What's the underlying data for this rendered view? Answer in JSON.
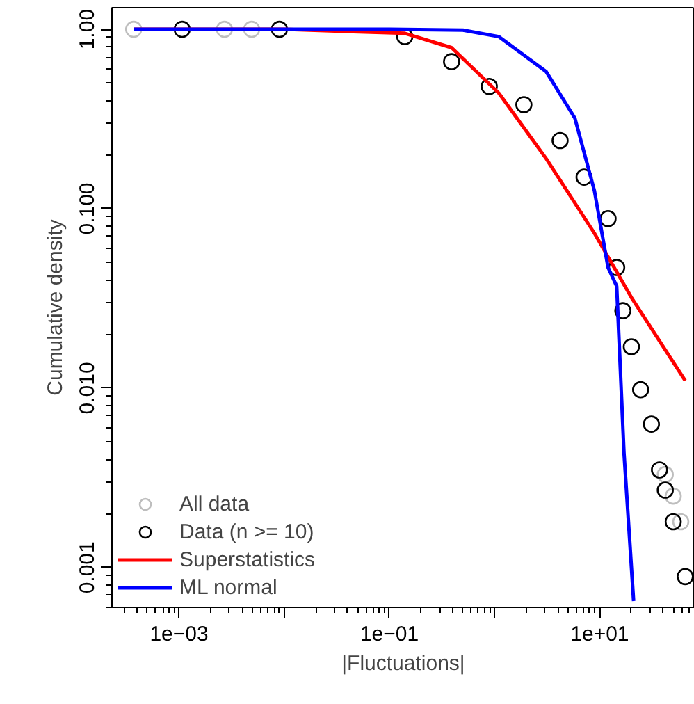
{
  "chart_data": {
    "type": "scatter",
    "xlabel": "|Fluctuations|",
    "ylabel": "Cumulative density",
    "log": "xy",
    "grid": false,
    "legend": "bottom left",
    "marker": "circle",
    "xlim": [
      0.00023,
      80
    ],
    "ylim": [
      0.0006,
      1.32
    ],
    "xticks": [
      {
        "value": 0.001,
        "label": "1e−03"
      },
      {
        "value": 0.01,
        "label": null
      },
      {
        "value": 0.1,
        "label": "1e−01"
      },
      {
        "value": 1,
        "label": null
      },
      {
        "value": 10,
        "label": "1e+01"
      }
    ],
    "yticks": [
      {
        "value": 0.001,
        "label": "0.001"
      },
      {
        "value": 0.01,
        "label": "0.010"
      },
      {
        "value": 0.1,
        "label": "0.100"
      },
      {
        "value": 1,
        "label": "1.00"
      }
    ],
    "series": [
      {
        "name": "All data",
        "color": "#bebebe",
        "x": [
          0.00037,
          0.0027,
          0.0049,
          42,
          50,
          59
        ],
        "values": [
          1.0,
          1.0,
          1.0,
          0.0033,
          0.0025,
          0.0018
        ]
      },
      {
        "name": "Data (n >= 10)",
        "color": "#000000",
        "x": [
          0.00107,
          0.009,
          0.14,
          0.39,
          0.89,
          1.9,
          4.2,
          7.1,
          12,
          14.5,
          16.6,
          20,
          24.5,
          31,
          37,
          42,
          50,
          65
        ],
        "values": [
          1.0,
          1.0,
          0.91,
          0.66,
          0.48,
          0.38,
          0.24,
          0.15,
          0.088,
          0.047,
          0.027,
          0.017,
          0.0098,
          0.0063,
          0.0035,
          0.0027,
          0.0018,
          0.00089
        ]
      },
      {
        "name": "Superstatistics",
        "type": "line",
        "marker": "none",
        "color": "#ff0000",
        "x": [
          0.00037,
          0.01,
          0.14,
          0.39,
          1.1,
          3.1,
          8.9,
          20,
          65
        ],
        "values": [
          1.0,
          1.0,
          0.95,
          0.79,
          0.44,
          0.19,
          0.073,
          0.032,
          0.011
        ]
      },
      {
        "name": "ML normal",
        "type": "line",
        "marker": "none",
        "color": "#0000ff",
        "x": [
          0.00037,
          0.1,
          0.5,
          1.1,
          3.1,
          5.8,
          8.9,
          12,
          14.5,
          17,
          21
        ],
        "values": [
          1.0,
          1.0,
          0.99,
          0.91,
          0.58,
          0.32,
          0.126,
          0.047,
          0.037,
          0.0044,
          0.00065
        ]
      }
    ]
  }
}
